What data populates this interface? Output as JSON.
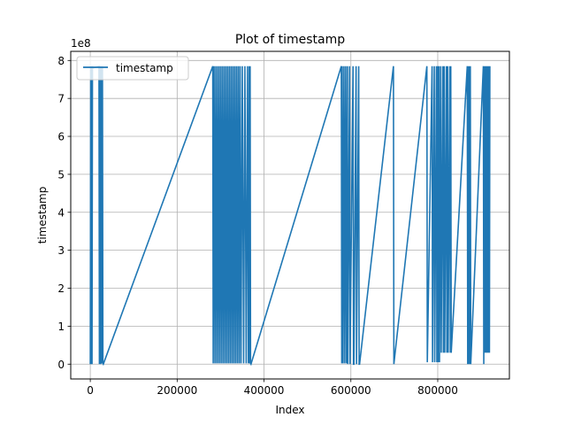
{
  "chart_data": {
    "type": "line",
    "title": "Plot of timestamp",
    "xlabel": "Index",
    "ylabel": "timestamp",
    "y_multiplier_label": "1e8",
    "xlim": [
      -45000,
      965000
    ],
    "ylim": [
      -0.39,
      8.24
    ],
    "x_ticks": [
      0,
      200000,
      400000,
      600000,
      800000
    ],
    "x_tick_labels": [
      "0",
      "200000",
      "400000",
      "600000",
      "800000"
    ],
    "y_ticks": [
      0,
      1,
      2,
      3,
      4,
      5,
      6,
      7,
      8
    ],
    "y_tick_labels": [
      "0",
      "1",
      "2",
      "3",
      "4",
      "5",
      "6",
      "7",
      "8"
    ],
    "grid": true,
    "legend_position": "top-left",
    "series": [
      {
        "name": "timestamp",
        "color": "#1f77b4",
        "x": [
          0,
          1000,
          2000,
          3000,
          4000,
          5000,
          6000,
          20000,
          21000,
          22000,
          23000,
          24000,
          26000,
          27000,
          28000,
          29000,
          30000,
          282000,
          283000,
          285000,
          287000,
          289000,
          291000,
          293000,
          295000,
          297000,
          299000,
          301000,
          303000,
          305000,
          307000,
          309000,
          311000,
          313000,
          315000,
          317000,
          319000,
          321000,
          323000,
          325000,
          327000,
          329000,
          331000,
          333000,
          335000,
          337000,
          339000,
          341000,
          343000,
          345000,
          347000,
          350000,
          353000,
          356000,
          359000,
          362000,
          364000,
          366000,
          367000,
          368000,
          369000,
          370000,
          578000,
          579000,
          580000,
          582000,
          584000,
          586000,
          588000,
          590000,
          592000,
          593000,
          597000,
          598000,
          605000,
          606000,
          607000,
          612000,
          613000,
          618000,
          619000,
          620000,
          698000,
          699000,
          775000,
          776000,
          787000,
          788000,
          792000,
          793000,
          797000,
          798000,
          800000,
          801000,
          803000,
          804000,
          807000,
          808000,
          812000,
          813000,
          815000,
          816000,
          820000,
          821000,
          823000,
          824000,
          828000,
          829000,
          830000,
          831000,
          868000,
          869000,
          870000,
          871000,
          872000,
          873000,
          875000,
          876000,
          905000,
          906000,
          908000,
          909000,
          910000,
          911000,
          912000,
          913000,
          914000,
          915000,
          916000,
          917000,
          918000,
          919000,
          920000
        ],
        "values": [
          0,
          7.85,
          0,
          7.85,
          0,
          7.85,
          7.8,
          7.85,
          0,
          7.85,
          7.8,
          0,
          7.85,
          0.02,
          7.85,
          0.02,
          0,
          7.85,
          0.02,
          7.85,
          0.02,
          7.85,
          0.02,
          7.85,
          0.02,
          7.85,
          0.02,
          7.85,
          0.02,
          7.85,
          0.02,
          7.85,
          0.02,
          7.85,
          0.02,
          7.85,
          0.02,
          7.85,
          0.02,
          7.85,
          0.02,
          7.85,
          0.02,
          7.85,
          0.02,
          7.85,
          0.02,
          7.85,
          0.02,
          7.85,
          0.02,
          7.85,
          0.02,
          7.85,
          0.02,
          7.85,
          0.02,
          7.85,
          0.02,
          7.85,
          0.02,
          0,
          7.85,
          0.02,
          7.85,
          0.02,
          7.85,
          0.02,
          7.85,
          0.02,
          7.85,
          0,
          7.85,
          0,
          7.85,
          0,
          0,
          7.85,
          0,
          7.85,
          0,
          0,
          7.85,
          0,
          7.85,
          0.05,
          7.85,
          0.05,
          7.85,
          0.05,
          7.85,
          0.05,
          7.85,
          0.05,
          7.85,
          0.05,
          7.85,
          0.3,
          7.85,
          0.3,
          7.85,
          0.3,
          7.85,
          0.3,
          7.85,
          0.3,
          7.85,
          0.3,
          7.85,
          0.3,
          7.85,
          0,
          7.85,
          0,
          7.85,
          0,
          7.85,
          0,
          7.85,
          0,
          7.85,
          0.3,
          7.85,
          0.3,
          7.85,
          0.3,
          7.85,
          0.3,
          7.85,
          0.3,
          7.85,
          0.3,
          7.85
        ]
      }
    ]
  }
}
